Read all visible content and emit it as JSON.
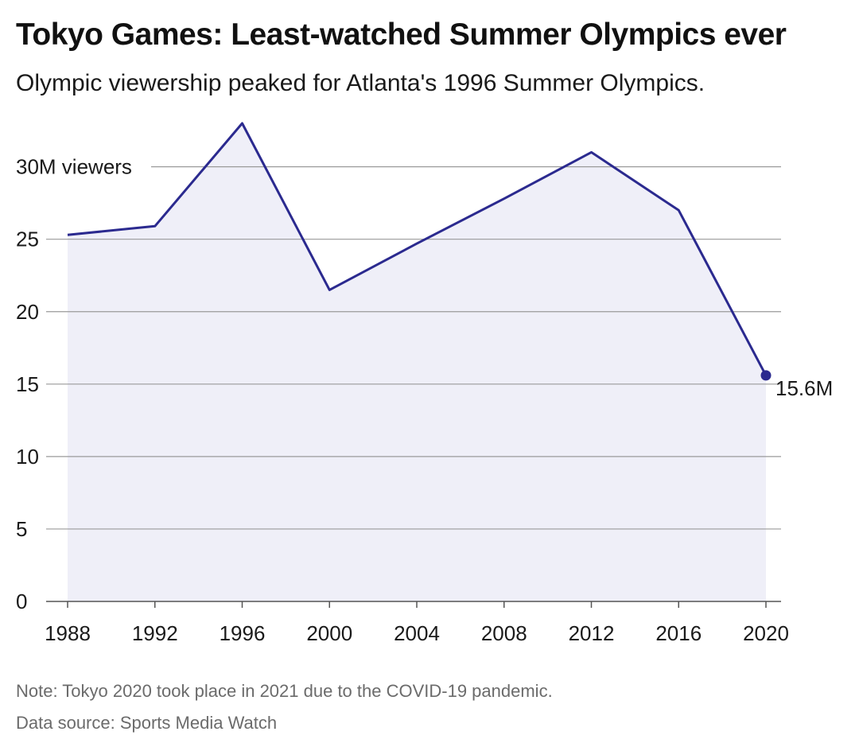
{
  "chart_data": {
    "type": "area",
    "title": "Tokyo Games: Least-watched Summer Olympics ever",
    "subtitle": "Olympic viewership peaked for Atlanta's 1996 Summer Olympics.",
    "x": [
      1988,
      1992,
      1996,
      2000,
      2004,
      2008,
      2012,
      2016,
      2020
    ],
    "series": [
      {
        "values": [
          25.3,
          25.9,
          33.0,
          21.5,
          24.7,
          27.8,
          31.0,
          27.0,
          15.6
        ],
        "color": "#2b2a8f",
        "fill": "#efeff8"
      }
    ],
    "ylim": [
      0,
      33
    ],
    "yticks": [
      0,
      5,
      10,
      15,
      20,
      25,
      30
    ],
    "ytick_labels": [
      "0",
      "5",
      "10",
      "15",
      "20",
      "25",
      "30M viewers"
    ],
    "xticks": [
      1988,
      1992,
      1996,
      2000,
      2004,
      2008,
      2012,
      2016,
      2020
    ],
    "xtick_labels": [
      "1988",
      "1992",
      "1996",
      "2000",
      "2004",
      "2008",
      "2012",
      "2016",
      "2020"
    ],
    "grid": true,
    "end_label": "15.6M"
  },
  "footer": {
    "note": "Note: Tokyo 2020 took place in 2021 due to the COVID-19 pandemic.",
    "source": "Data source: Sports Media Watch"
  }
}
